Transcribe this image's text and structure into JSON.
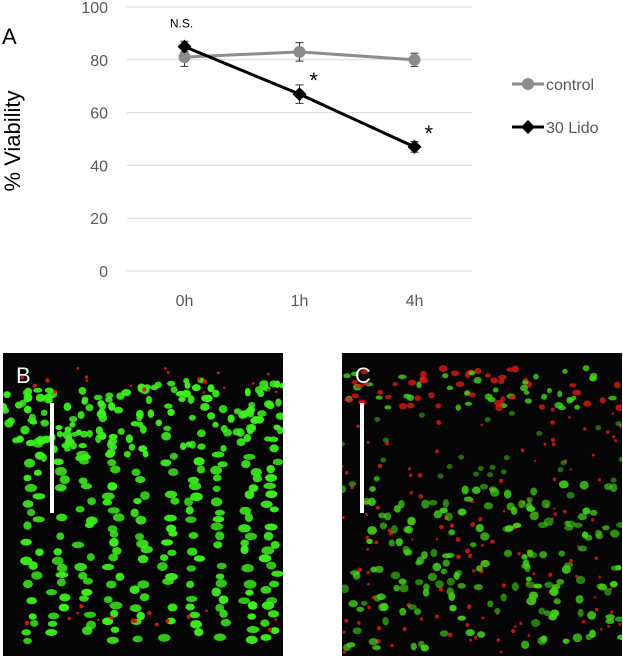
{
  "chart_data": {
    "type": "line",
    "panel_label": "A",
    "ylabel": "% Viability",
    "xlabel": "",
    "title": "",
    "categories": [
      "0h",
      "1h",
      "4h"
    ],
    "ylim": [
      0,
      100
    ],
    "yticks": [
      0,
      20,
      40,
      60,
      80,
      100
    ],
    "grid": true,
    "legend_position": "right",
    "series": [
      {
        "name": "control",
        "values": [
          81,
          83,
          80
        ],
        "errors": [
          3.5,
          3.5,
          2.5
        ],
        "marker": "circle",
        "color": "#8c8c8c"
      },
      {
        "name": "30 Lido",
        "values": [
          85,
          67,
          47
        ],
        "errors": [
          2,
          3.5,
          2
        ],
        "marker": "diamond",
        "color": "#000000"
      }
    ],
    "annotations": [
      {
        "text": "N.S.",
        "category": "0h"
      },
      {
        "text": "*",
        "category": "1h"
      },
      {
        "text": "*",
        "category": "4h"
      }
    ]
  },
  "micrographs": {
    "panel_b": {
      "label": "B",
      "colors": {
        "green": "#3cf01e",
        "red": "#d01a10"
      }
    },
    "panel_c": {
      "label": "C",
      "colors": {
        "green": "#44d41c",
        "red": "#d81a14"
      }
    }
  }
}
